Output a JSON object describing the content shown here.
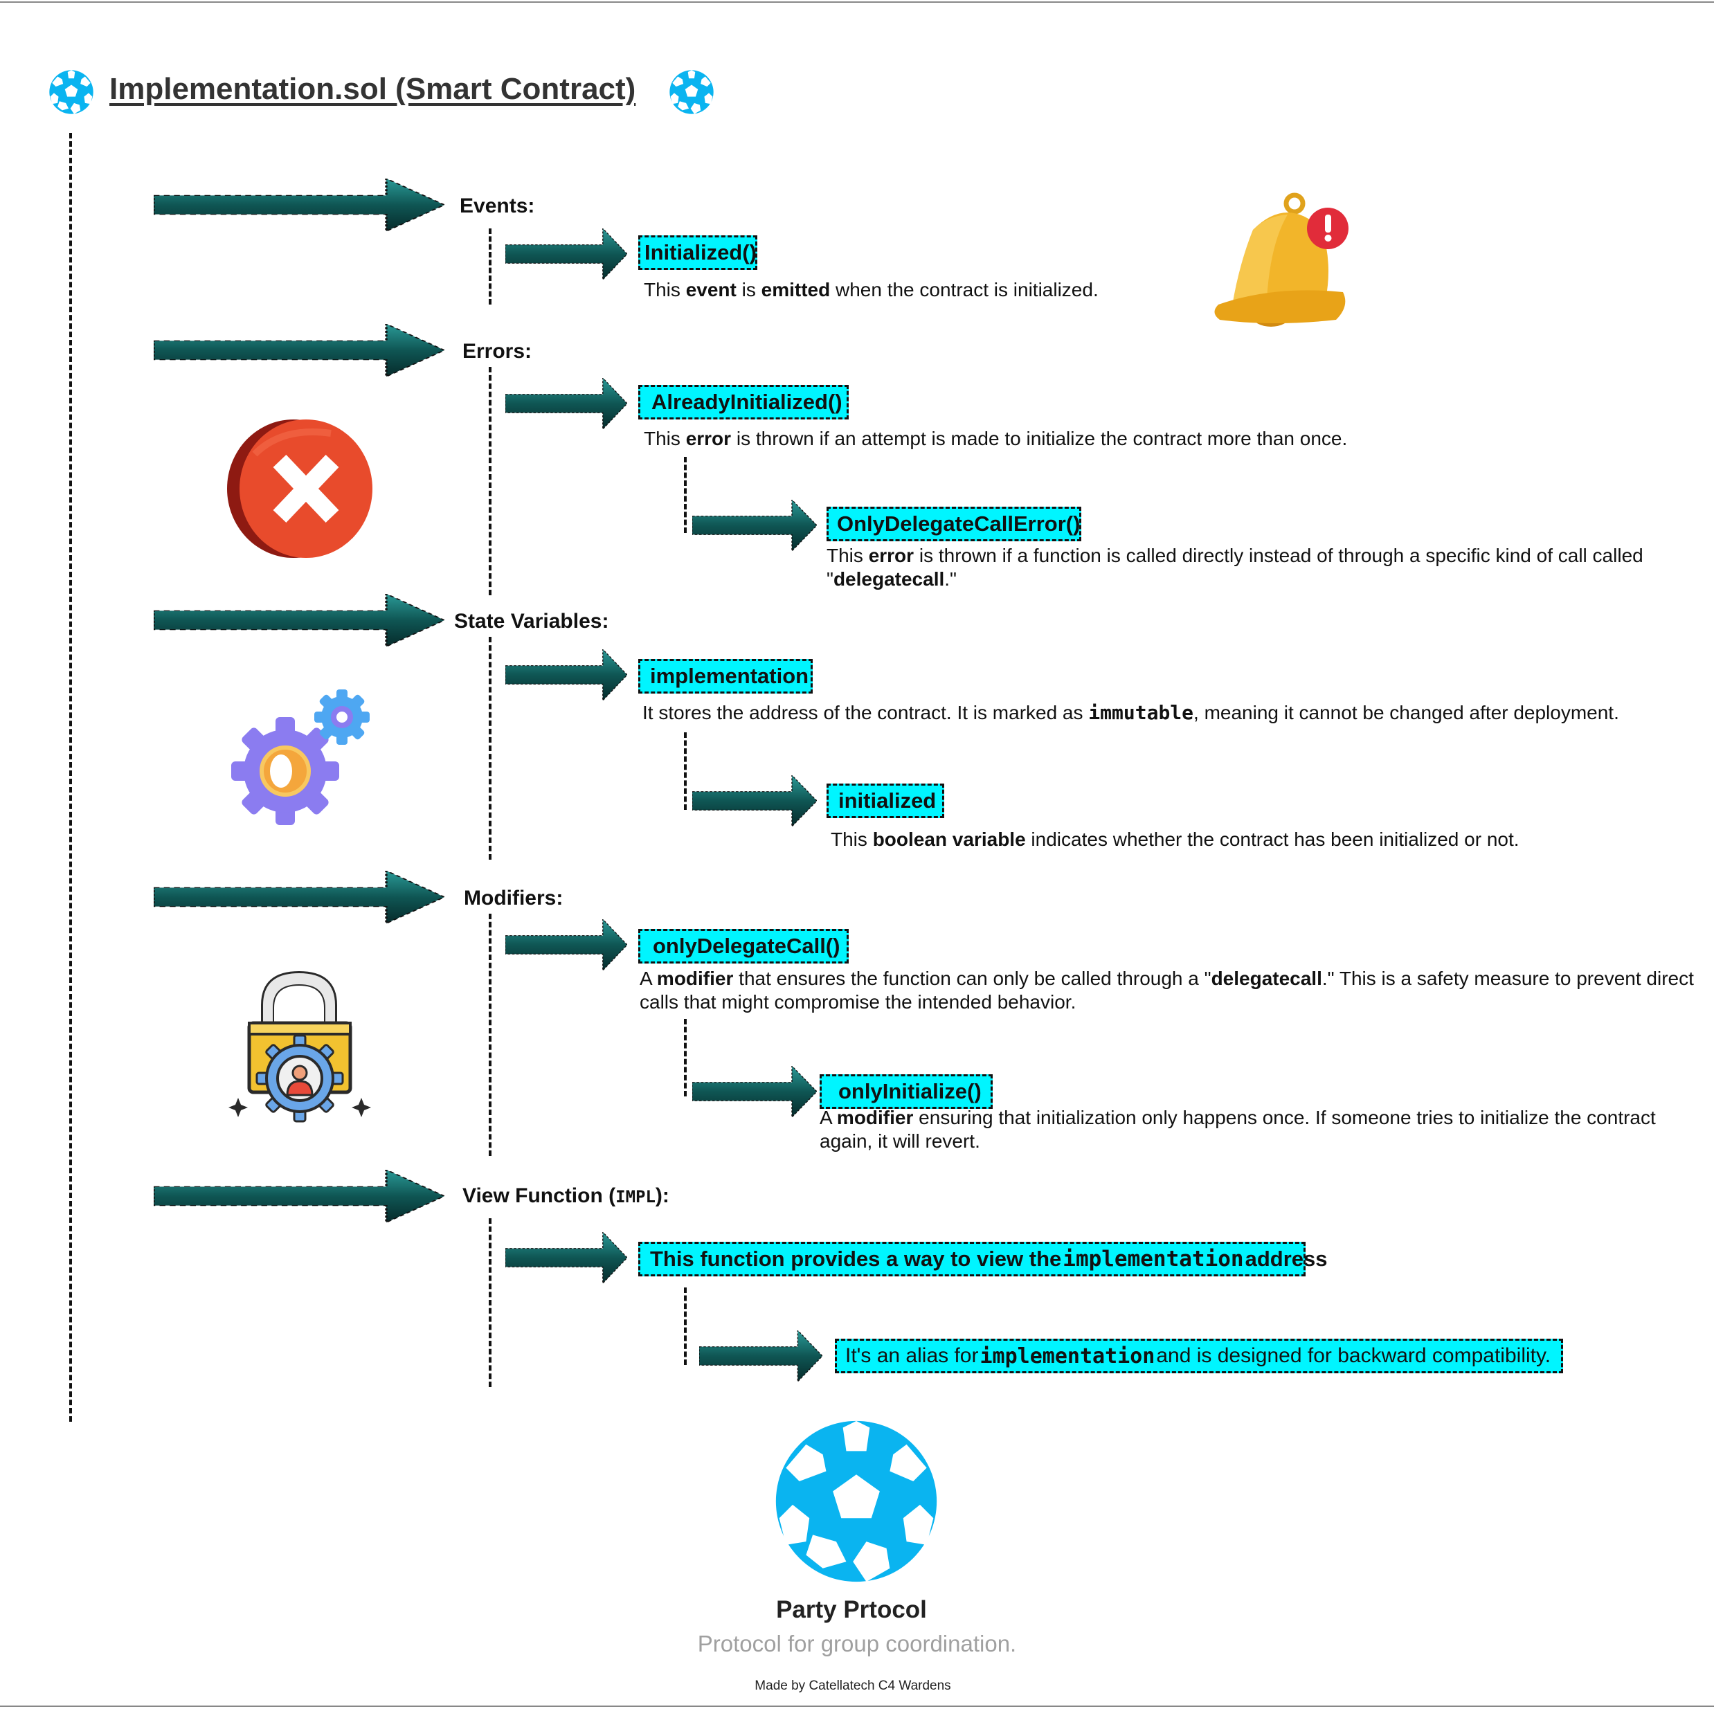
{
  "header": {
    "title": "Implementation.sol (Smart Contract)",
    "logo_icon": "party-ball-icon"
  },
  "sections": {
    "events": {
      "label": "Events:",
      "item": {
        "name": "Initialized()",
        "desc": [
          "This ",
          "event",
          " is ",
          "emitted",
          " when the contract is initialized."
        ]
      },
      "icon": "bell-notification-icon"
    },
    "errors": {
      "label": "Errors:",
      "items": [
        {
          "name": "AlreadyInitialized()",
          "desc": [
            "This ",
            "error",
            " is thrown if an attempt is made to initialize the contract more than once."
          ]
        },
        {
          "name": "OnlyDelegateCallError()",
          "desc": [
            "This ",
            "error",
            " is thrown if a function is called directly instead of through a specific kind of call called \"",
            "delegatecall",
            ".\""
          ]
        }
      ],
      "icon": "error-x-icon"
    },
    "state_variables": {
      "label": "State Variables:",
      "items": [
        {
          "name": "implementation",
          "desc": [
            "It stores the address of the contract. It is marked as ",
            "immutable",
            ", meaning it cannot be changed after deployment."
          ]
        },
        {
          "name": "initialized",
          "desc": [
            "This ",
            "boolean variable",
            " indicates whether the contract has been initialized or not."
          ]
        }
      ],
      "icon": "gears-icon"
    },
    "modifiers": {
      "label": "Modifiers:",
      "items": [
        {
          "name": "onlyDelegateCall()",
          "desc": [
            "A ",
            "modifier",
            " that ensures the function can only be called through a \"",
            "delegatecall",
            ".\" This is a safety measure to prevent direct calls that might compromise the intended behavior."
          ]
        },
        {
          "name": "onlyInitialize()",
          "desc": [
            "A ",
            "modifier",
            " ensuring that initialization only happens once. If someone tries to initialize the contract again, it will revert."
          ]
        }
      ],
      "icon": "lock-user-icon"
    },
    "view_function": {
      "label_prefix": "View Function (",
      "label_code": "IMPL",
      "label_suffix": "):",
      "item1": [
        "This function provides a way to view the ",
        "implementation",
        " address"
      ],
      "item2": [
        "It's an alias for ",
        "implementation",
        " and is designed for backward compatibility."
      ]
    }
  },
  "footer": {
    "brand": "Party Prtocol",
    "tagline": "Protocol for group coordination.",
    "credit": "Made by Catellatech C4 Wardens",
    "logo_icon": "party-ball-icon"
  },
  "colors": {
    "chip": "#00f5ff",
    "arrow_dark": "#0b3b3b",
    "arrow_mid": "#137a78",
    "ball": "#0ab4f0",
    "tagline": "#a0a0a0"
  }
}
